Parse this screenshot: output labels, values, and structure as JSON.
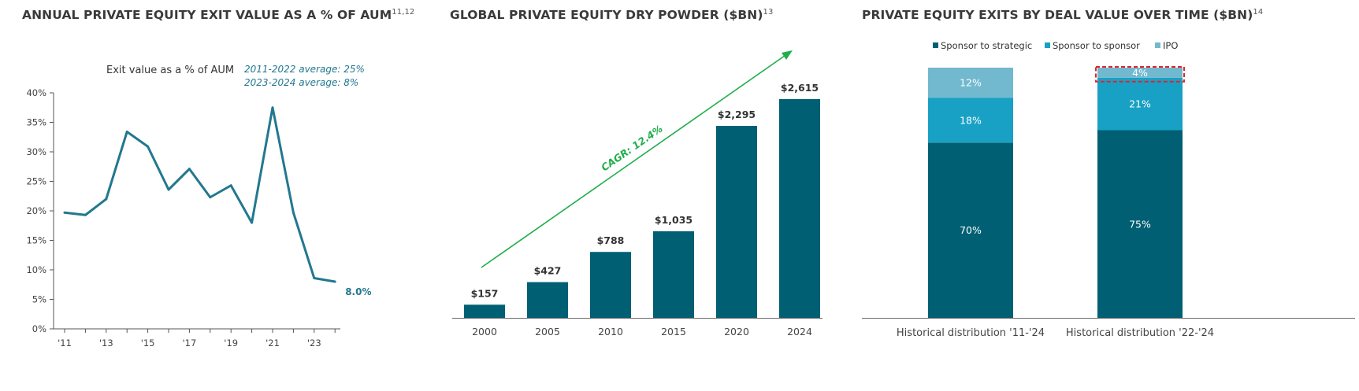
{
  "colors": {
    "teal_dark": "#005f73",
    "teal_mid": "#18a1c4",
    "teal_light": "#72b9cf",
    "line": "#22788f",
    "arrow": "#1fae4b",
    "highlight": "#e0242d",
    "axis": "#555555"
  },
  "panels": {
    "p1": {
      "title": "ANNUAL PRIVATE EQUITY EXIT VALUE AS A % OF AUM",
      "sup": "11,12"
    },
    "p2": {
      "title": "GLOBAL PRIVATE EQUITY DRY POWDER ($BN)",
      "sup": "13"
    },
    "p3": {
      "title": "PRIVATE EQUITY EXITS BY DEAL VALUE OVER TIME ($BN)",
      "sup": "14"
    }
  },
  "chart_data": [
    {
      "type": "line",
      "title": "ANNUAL PRIVATE EQUITY EXIT VALUE AS A % OF AUM",
      "series_label": "Exit value as a % of AUM",
      "annotations": [
        "2011-2022 average: 25%",
        "2023-2024 average: 8%"
      ],
      "end_label": "8.0%",
      "x": [
        2011,
        2012,
        2013,
        2014,
        2015,
        2016,
        2017,
        2018,
        2019,
        2020,
        2021,
        2022,
        2023,
        2024
      ],
      "y": [
        19.7,
        19.3,
        22.0,
        33.4,
        30.9,
        23.6,
        27.1,
        22.3,
        24.3,
        18.0,
        37.5,
        19.7,
        8.6,
        8.0
      ],
      "x_ticks": [
        2011,
        2013,
        2015,
        2017,
        2019,
        2021,
        2023
      ],
      "x_tick_labels": [
        "'11",
        "'13",
        "'15",
        "'17",
        "'19",
        "'21",
        "'23"
      ],
      "y_ticks": [
        0,
        5,
        10,
        15,
        20,
        25,
        30,
        35,
        40
      ],
      "y_tick_labels": [
        "0%",
        "5%",
        "10%",
        "15%",
        "20%",
        "25%",
        "30%",
        "35%",
        "40%"
      ],
      "ylim": [
        0,
        40
      ],
      "grid": false
    },
    {
      "type": "bar",
      "title": "GLOBAL PRIVATE EQUITY DRY POWDER ($BN)",
      "categories": [
        "2000",
        "2005",
        "2010",
        "2015",
        "2020",
        "2024"
      ],
      "values": [
        157,
        427,
        788,
        1035,
        2295,
        2615
      ],
      "value_labels": [
        "$157",
        "$427",
        "$788",
        "$1,035",
        "$2,295",
        "$2,615"
      ],
      "arrow_label": "CAGR: 12.4%",
      "grid": false
    },
    {
      "type": "bar",
      "stacked": true,
      "title": "PRIVATE EQUITY EXITS BY DEAL VALUE OVER TIME ($BN)",
      "categories": [
        "Historical distribution '11-'24",
        "Historical distribution '22-'24"
      ],
      "series": [
        {
          "name": "Sponsor to strategic",
          "values": [
            70,
            75
          ],
          "labels": [
            "70%",
            "75%"
          ]
        },
        {
          "name": "Sponsor to sponsor",
          "values": [
            18,
            21
          ],
          "labels": [
            "18%",
            "21%"
          ]
        },
        {
          "name": "IPO",
          "values": [
            12,
            4
          ],
          "labels": [
            "12%",
            "4%"
          ]
        }
      ],
      "legend": "top",
      "highlight": "IPO segment of '22-'24 bar (dashed red outline)"
    }
  ]
}
